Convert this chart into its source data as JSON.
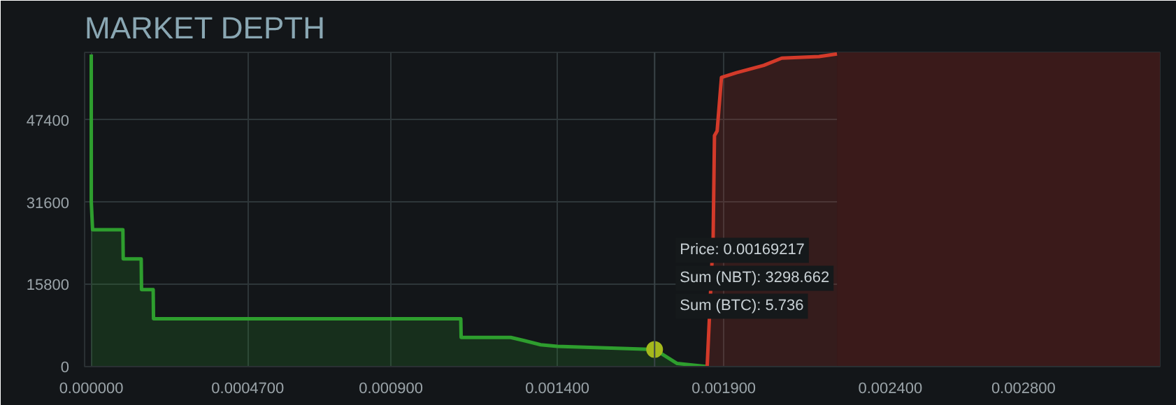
{
  "chart_data": {
    "type": "area",
    "title": "MARKET DEPTH",
    "xlim": [
      -2e-05,
      0.00321
    ],
    "ylim": [
      0,
      60400
    ],
    "xticks": [
      {
        "value": 0,
        "label": "0.000000"
      },
      {
        "value": 0.00047,
        "label": "0.0004700"
      },
      {
        "value": 0.0009,
        "label": "0.000900"
      },
      {
        "value": 0.0014,
        "label": "0.001400"
      },
      {
        "value": 0.0019,
        "label": "0.001900"
      },
      {
        "value": 0.0024,
        "label": "0.002400"
      },
      {
        "value": 0.0028,
        "label": "0.002800"
      }
    ],
    "yticks": [
      0,
      15800,
      31600,
      47400
    ],
    "grid": true,
    "marker": "none",
    "line_style": "solid",
    "series": [
      {
        "color": "#2e9e2e",
        "x": [
          0,
          1e-07,
          4e-06,
          9.5e-05,
          9.6e-05,
          0.00015,
          0.000151,
          0.000186,
          0.000187,
          0.00111,
          0.001111,
          0.00126,
          0.0013,
          0.00135,
          0.0014,
          0.00169217,
          0.00176,
          0.00185
        ],
        "values": [
          60000,
          31600,
          26300,
          26300,
          20700,
          20700,
          14800,
          14800,
          9200,
          9200,
          5600,
          5600,
          5000,
          4200,
          3900,
          3300,
          600,
          0
        ]
      },
      {
        "color": "#d33a2a",
        "x": [
          0.00185,
          0.001868,
          0.001872,
          0.00188,
          0.001893,
          0.001938,
          0.00202,
          0.002074,
          0.002186,
          0.00224
        ],
        "values": [
          0,
          24900,
          44400,
          45300,
          55600,
          56500,
          57900,
          59300,
          59600,
          60100
        ]
      },
      {
        "type": "scatter",
        "marker": "circle",
        "color": "#a5b81c",
        "x": [
          0.00169217
        ],
        "values": [
          3300
        ]
      }
    ],
    "bands": [
      {
        "axis": "x",
        "from": 0.00224,
        "to": 0.00321,
        "color": "#3a1a1a"
      }
    ],
    "ref_lines": [
      {
        "axis": "x",
        "value": 0.00169217,
        "color": "#3a4448"
      }
    ],
    "annotations": [
      "Price: 0.00169217",
      "Sum (NBT): 3298.662",
      "Sum (BTC): 5.736"
    ]
  }
}
